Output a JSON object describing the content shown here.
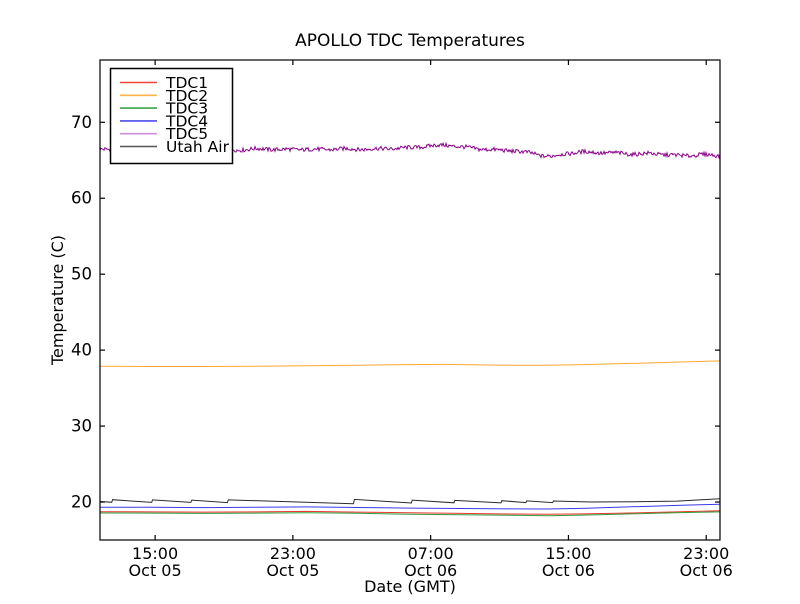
{
  "window": {
    "background": "#ffffff"
  },
  "chart_data": {
    "type": "line",
    "title": "APOLLO TDC Temperatures",
    "xlabel": "Date (GMT)",
    "ylabel": "Temperature (C)",
    "ylim": [
      15.0,
      78.2
    ],
    "x_span_hours": 36,
    "grid": false,
    "axis_color": "#000000",
    "background": "#ffffff",
    "legend_position": "upper-left",
    "yticks": [
      20,
      30,
      40,
      50,
      60,
      70
    ],
    "xticks": [
      {
        "hour": 3.2,
        "time": "15:00",
        "date": "Oct 05"
      },
      {
        "hour": 11.2,
        "time": "23:00",
        "date": "Oct 05"
      },
      {
        "hour": 19.2,
        "time": "07:00",
        "date": "Oct 06"
      },
      {
        "hour": 27.2,
        "time": "15:00",
        "date": "Oct 06"
      },
      {
        "hour": 35.2,
        "time": "23:00",
        "date": "Oct 06"
      }
    ],
    "series": [
      {
        "name": "TDC1",
        "color": "#e8392b",
        "legend_color": "#ef4639",
        "points": [
          [
            0,
            18.72
          ],
          [
            3,
            18.7
          ],
          [
            6,
            18.67
          ],
          [
            9,
            18.7
          ],
          [
            12,
            18.77
          ],
          [
            15,
            18.68
          ],
          [
            18,
            18.58
          ],
          [
            21,
            18.5
          ],
          [
            24,
            18.42
          ],
          [
            26,
            18.38
          ],
          [
            28,
            18.44
          ],
          [
            30,
            18.52
          ],
          [
            32,
            18.62
          ],
          [
            34,
            18.74
          ],
          [
            36,
            18.84
          ]
        ]
      },
      {
        "name": "TDC2",
        "color": "#ffa733",
        "legend_color": "#ffb54a",
        "points": [
          [
            0,
            37.88
          ],
          [
            3,
            37.85
          ],
          [
            6,
            37.84
          ],
          [
            9,
            37.88
          ],
          [
            12,
            37.95
          ],
          [
            15,
            38.02
          ],
          [
            18,
            38.1
          ],
          [
            20,
            38.12
          ],
          [
            22,
            38.05
          ],
          [
            24,
            38.0
          ],
          [
            26,
            38.02
          ],
          [
            28,
            38.1
          ],
          [
            30,
            38.2
          ],
          [
            32,
            38.32
          ],
          [
            34,
            38.45
          ],
          [
            36,
            38.58
          ]
        ]
      },
      {
        "name": "TDC3",
        "color": "#2e9c3e",
        "legend_color": "#3ba64b",
        "points": [
          [
            0,
            18.56
          ],
          [
            3,
            18.54
          ],
          [
            6,
            18.5
          ],
          [
            9,
            18.54
          ],
          [
            12,
            18.6
          ],
          [
            15,
            18.52
          ],
          [
            18,
            18.4
          ],
          [
            21,
            18.32
          ],
          [
            24,
            18.25
          ],
          [
            26,
            18.2
          ],
          [
            28,
            18.28
          ],
          [
            30,
            18.38
          ],
          [
            32,
            18.5
          ],
          [
            34,
            18.62
          ],
          [
            36,
            18.7
          ]
        ]
      },
      {
        "name": "TDC4",
        "color": "#3939e8",
        "legend_color": "#4d4df0",
        "points": [
          [
            0,
            19.32
          ],
          [
            3,
            19.3
          ],
          [
            6,
            19.27
          ],
          [
            9,
            19.3
          ],
          [
            12,
            19.36
          ],
          [
            15,
            19.28
          ],
          [
            18,
            19.2
          ],
          [
            21,
            19.15
          ],
          [
            24,
            19.1
          ],
          [
            26,
            19.08
          ],
          [
            28,
            19.16
          ],
          [
            30,
            19.3
          ],
          [
            32,
            19.45
          ],
          [
            34,
            19.6
          ],
          [
            36,
            19.72
          ]
        ]
      },
      {
        "name": "TDC5",
        "color": "#8b008b",
        "legend_color": "#cb92d8",
        "noise_amplitude": 0.27,
        "points": [
          [
            0,
            66.45
          ],
          [
            1,
            66.3
          ],
          [
            2,
            66.5
          ],
          [
            3,
            66.35
          ],
          [
            4,
            66.4
          ],
          [
            5,
            66.5
          ],
          [
            6,
            66.4
          ],
          [
            7,
            66.45
          ],
          [
            8,
            66.35
          ],
          [
            9,
            66.5
          ],
          [
            10,
            66.45
          ],
          [
            11,
            66.4
          ],
          [
            12,
            66.45
          ],
          [
            13,
            66.4
          ],
          [
            14,
            66.5
          ],
          [
            15,
            66.45
          ],
          [
            16,
            66.5
          ],
          [
            17,
            66.55
          ],
          [
            18,
            66.65
          ],
          [
            19,
            66.85
          ],
          [
            20,
            67.0
          ],
          [
            20.5,
            66.9
          ],
          [
            21,
            66.75
          ],
          [
            22,
            66.5
          ],
          [
            23,
            66.35
          ],
          [
            24,
            66.25
          ],
          [
            25,
            65.95
          ],
          [
            25.7,
            65.6
          ],
          [
            26.2,
            65.5
          ],
          [
            27,
            65.85
          ],
          [
            28,
            66.1
          ],
          [
            29,
            66.0
          ],
          [
            30,
            65.95
          ],
          [
            31,
            65.8
          ],
          [
            32,
            65.9
          ],
          [
            33,
            65.7
          ],
          [
            34,
            65.6
          ],
          [
            35,
            65.75
          ],
          [
            36,
            65.6
          ]
        ]
      },
      {
        "name": "Utah Air",
        "color": "#2a2a2a",
        "legend_color": "#555555",
        "points": [
          [
            0,
            20.08
          ],
          [
            0.68,
            19.97
          ],
          [
            0.73,
            20.3
          ],
          [
            3.0,
            19.95
          ],
          [
            3.05,
            20.28
          ],
          [
            5.28,
            19.95
          ],
          [
            5.33,
            20.26
          ],
          [
            7.4,
            19.92
          ],
          [
            7.45,
            20.28
          ],
          [
            14.72,
            19.78
          ],
          [
            14.77,
            20.34
          ],
          [
            18.08,
            19.87
          ],
          [
            18.13,
            20.26
          ],
          [
            20.55,
            19.9
          ],
          [
            20.6,
            20.22
          ],
          [
            23.28,
            19.88
          ],
          [
            23.33,
            20.17
          ],
          [
            24.73,
            19.92
          ],
          [
            24.78,
            20.15
          ],
          [
            26.28,
            19.92
          ],
          [
            26.33,
            20.14
          ],
          [
            28.5,
            20.0
          ],
          [
            31,
            20.03
          ],
          [
            33.5,
            20.12
          ],
          [
            36,
            20.42
          ]
        ]
      }
    ]
  }
}
